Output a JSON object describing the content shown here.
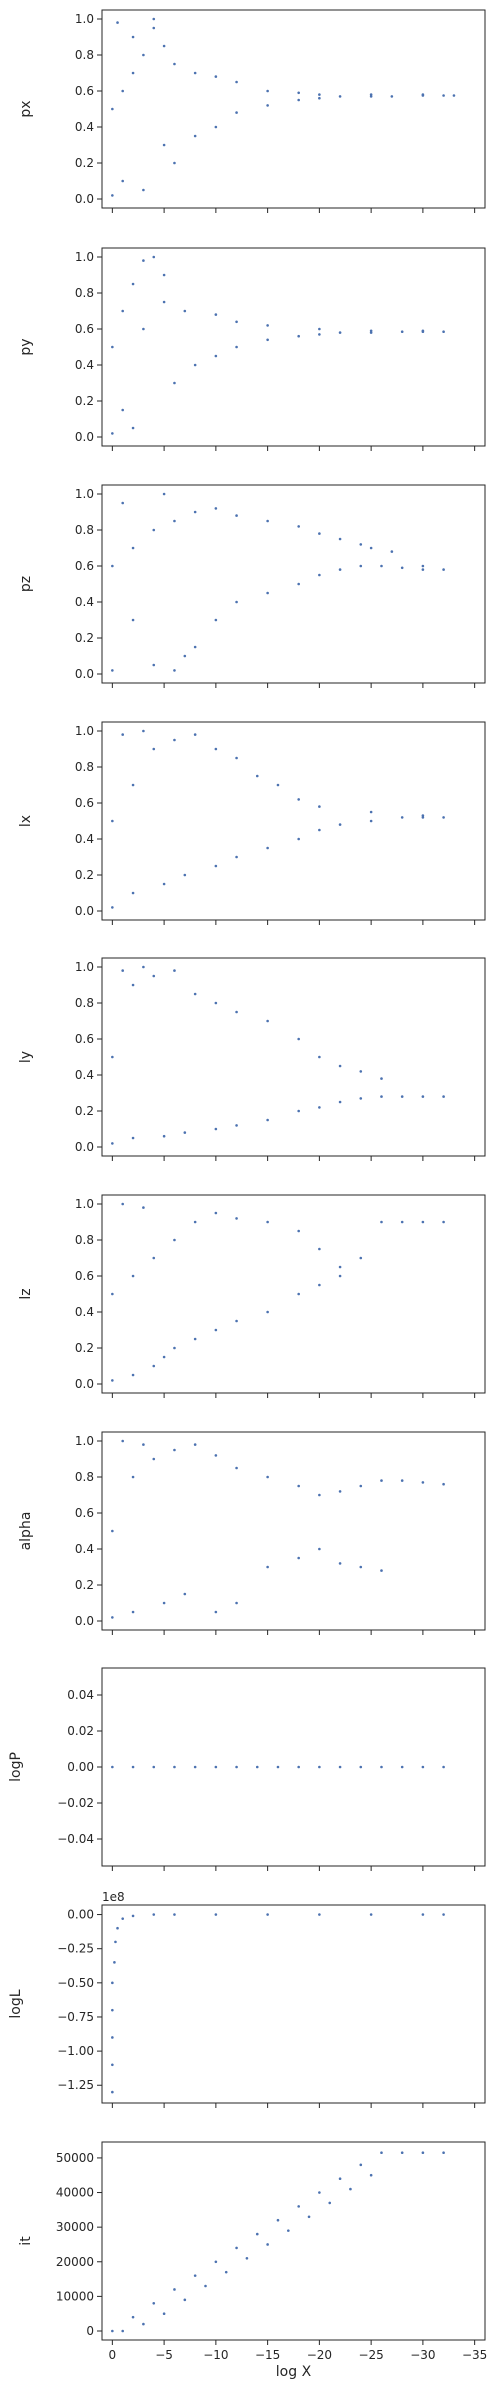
{
  "chart_data": {
    "type": "scatter",
    "xlabel": "log X",
    "xlim": [
      1,
      -36
    ],
    "x_ticks": [
      0,
      -5,
      -10,
      -15,
      -20,
      -25,
      -30,
      -35
    ],
    "x_tick_labels": [
      "0",
      "−5",
      "−10",
      "−15",
      "−20",
      "−25",
      "−30",
      "−35"
    ],
    "marker_color": "#4c72b0",
    "grid": false,
    "legend": "none",
    "panels": [
      {
        "ylabel": "px",
        "ylim": [
          -0.05,
          1.05
        ],
        "y_ticks": [
          0.0,
          0.2,
          0.4,
          0.6,
          0.8,
          1.0
        ],
        "y_tick_labels": [
          "0.0",
          "0.2",
          "0.4",
          "0.6",
          "0.8",
          "1.0"
        ],
        "data": {
          "x": [
            0,
            -0.5,
            -1,
            -2,
            -3,
            -4,
            -5,
            -6,
            -8,
            -10,
            -12,
            -15,
            -18,
            -20,
            -22,
            -25,
            -27,
            -30,
            -32,
            -33,
            0,
            -1,
            -2,
            -3,
            -4,
            -5,
            -6,
            -8,
            -10,
            -12,
            -15,
            -18,
            -20,
            -25,
            -30
          ],
          "y": [
            0.02,
            0.98,
            0.1,
            0.9,
            0.05,
            1.0,
            0.3,
            0.2,
            0.35,
            0.4,
            0.48,
            0.52,
            0.55,
            0.56,
            0.57,
            0.57,
            0.57,
            0.575,
            0.575,
            0.575,
            0.5,
            0.6,
            0.7,
            0.8,
            0.95,
            0.85,
            0.75,
            0.7,
            0.68,
            0.65,
            0.6,
            0.59,
            0.58,
            0.58,
            0.58
          ]
        }
      },
      {
        "ylabel": "py",
        "ylim": [
          -0.05,
          1.05
        ],
        "y_ticks": [
          0.0,
          0.2,
          0.4,
          0.6,
          0.8,
          1.0
        ],
        "y_tick_labels": [
          "0.0",
          "0.2",
          "0.4",
          "0.6",
          "0.8",
          "1.0"
        ],
        "data": {
          "x": [
            0,
            -1,
            -2,
            -3,
            -4,
            -5,
            -6,
            -8,
            -10,
            -12,
            -15,
            -18,
            -20,
            -22,
            -25,
            -28,
            -30,
            -32,
            0,
            -1,
            -2,
            -3,
            -5,
            -7,
            -10,
            -12,
            -15,
            -20,
            -25,
            -30
          ],
          "y": [
            0.02,
            0.15,
            0.05,
            0.98,
            1.0,
            0.9,
            0.3,
            0.4,
            0.45,
            0.5,
            0.54,
            0.56,
            0.57,
            0.58,
            0.58,
            0.585,
            0.585,
            0.585,
            0.5,
            0.7,
            0.85,
            0.6,
            0.75,
            0.7,
            0.68,
            0.64,
            0.62,
            0.6,
            0.59,
            0.59
          ]
        }
      },
      {
        "ylabel": "pz",
        "ylim": [
          -0.05,
          1.05
        ],
        "y_ticks": [
          0.0,
          0.2,
          0.4,
          0.6,
          0.8,
          1.0
        ],
        "y_tick_labels": [
          "0.0",
          "0.2",
          "0.4",
          "0.6",
          "0.8",
          "1.0"
        ],
        "data": {
          "x": [
            0,
            -1,
            -2,
            -4,
            -5,
            -6,
            -7,
            -8,
            -10,
            -12,
            -15,
            -18,
            -20,
            -22,
            -24,
            -26,
            -28,
            -30,
            -32,
            0,
            -2,
            -4,
            -6,
            -8,
            -10,
            -12,
            -15,
            -18,
            -20,
            -22,
            -24,
            -25,
            -27,
            -30
          ],
          "y": [
            0.02,
            0.95,
            0.3,
            0.05,
            1.0,
            0.02,
            0.1,
            0.15,
            0.3,
            0.4,
            0.45,
            0.5,
            0.55,
            0.58,
            0.6,
            0.6,
            0.59,
            0.58,
            0.58,
            0.6,
            0.7,
            0.8,
            0.85,
            0.9,
            0.92,
            0.88,
            0.85,
            0.82,
            0.78,
            0.75,
            0.72,
            0.7,
            0.68,
            0.6
          ]
        }
      },
      {
        "ylabel": "lx",
        "ylim": [
          -0.05,
          1.05
        ],
        "y_ticks": [
          0.0,
          0.2,
          0.4,
          0.6,
          0.8,
          1.0
        ],
        "y_tick_labels": [
          "0.0",
          "0.2",
          "0.4",
          "0.6",
          "0.8",
          "1.0"
        ],
        "data": {
          "x": [
            0,
            -1,
            -2,
            -3,
            -5,
            -7,
            -10,
            -12,
            -15,
            -18,
            -20,
            -22,
            -25,
            -28,
            -30,
            -32,
            0,
            -2,
            -4,
            -6,
            -8,
            -10,
            -12,
            -14,
            -16,
            -18,
            -20,
            -25,
            -30
          ],
          "y": [
            0.02,
            0.98,
            0.1,
            1.0,
            0.15,
            0.2,
            0.25,
            0.3,
            0.35,
            0.4,
            0.45,
            0.48,
            0.5,
            0.52,
            0.52,
            0.52,
            0.5,
            0.7,
            0.9,
            0.95,
            0.98,
            0.9,
            0.85,
            0.75,
            0.7,
            0.62,
            0.58,
            0.55,
            0.53
          ]
        }
      },
      {
        "ylabel": "ly",
        "ylim": [
          -0.05,
          1.05
        ],
        "y_ticks": [
          0.0,
          0.2,
          0.4,
          0.6,
          0.8,
          1.0
        ],
        "y_tick_labels": [
          "0.0",
          "0.2",
          "0.4",
          "0.6",
          "0.8",
          "1.0"
        ],
        "data": {
          "x": [
            0,
            -1,
            -2,
            -3,
            -5,
            -7,
            -10,
            -12,
            -15,
            -18,
            -20,
            -22,
            -24,
            -26,
            -28,
            -30,
            -32,
            0,
            -2,
            -4,
            -6,
            -8,
            -10,
            -12,
            -15,
            -18,
            -20,
            -22,
            -24,
            -26
          ],
          "y": [
            0.02,
            0.98,
            0.05,
            1.0,
            0.06,
            0.08,
            0.1,
            0.12,
            0.15,
            0.2,
            0.22,
            0.25,
            0.27,
            0.28,
            0.28,
            0.28,
            0.28,
            0.5,
            0.9,
            0.95,
            0.98,
            0.85,
            0.8,
            0.75,
            0.7,
            0.6,
            0.5,
            0.45,
            0.42,
            0.38
          ]
        }
      },
      {
        "ylabel": "lz",
        "ylim": [
          -0.05,
          1.05
        ],
        "y_ticks": [
          0.0,
          0.2,
          0.4,
          0.6,
          0.8,
          1.0
        ],
        "y_tick_labels": [
          "0.0",
          "0.2",
          "0.4",
          "0.6",
          "0.8",
          "1.0"
        ],
        "data": {
          "x": [
            0,
            -1,
            -2,
            -3,
            -4,
            -5,
            -6,
            -8,
            -10,
            -12,
            -15,
            -18,
            -20,
            -22,
            -24,
            -26,
            -28,
            -30,
            -32,
            0,
            -2,
            -4,
            -6,
            -8,
            -10,
            -12,
            -15,
            -18,
            -20,
            -22
          ],
          "y": [
            0.02,
            1.0,
            0.05,
            0.98,
            0.1,
            0.15,
            0.2,
            0.25,
            0.3,
            0.35,
            0.4,
            0.5,
            0.55,
            0.6,
            0.7,
            0.9,
            0.9,
            0.9,
            0.9,
            0.5,
            0.6,
            0.7,
            0.8,
            0.9,
            0.95,
            0.92,
            0.9,
            0.85,
            0.75,
            0.65
          ]
        }
      },
      {
        "ylabel": "alpha",
        "ylim": [
          -0.05,
          1.05
        ],
        "y_ticks": [
          0.0,
          0.2,
          0.4,
          0.6,
          0.8,
          1.0
        ],
        "y_tick_labels": [
          "0.0",
          "0.2",
          "0.4",
          "0.6",
          "0.8",
          "1.0"
        ],
        "data": {
          "x": [
            0,
            -1,
            -2,
            -3,
            -5,
            -7,
            -10,
            -12,
            -15,
            -18,
            -20,
            -22,
            -24,
            -26,
            -28,
            -30,
            -32,
            0,
            -2,
            -4,
            -6,
            -8,
            -10,
            -12,
            -15,
            -18,
            -20,
            -22,
            -24,
            -26
          ],
          "y": [
            0.02,
            1.0,
            0.05,
            0.98,
            0.1,
            0.15,
            0.05,
            0.1,
            0.3,
            0.35,
            0.4,
            0.32,
            0.3,
            0.78,
            0.78,
            0.77,
            0.76,
            0.5,
            0.8,
            0.9,
            0.95,
            0.98,
            0.92,
            0.85,
            0.8,
            0.75,
            0.7,
            0.72,
            0.75,
            0.28
          ]
        }
      },
      {
        "ylabel": "logP",
        "ylim": [
          -0.055,
          0.055
        ],
        "y_ticks": [
          -0.04,
          -0.02,
          0.0,
          0.02,
          0.04
        ],
        "y_tick_labels": [
          "−0.04",
          "−0.02",
          "0.00",
          "0.02",
          "0.04"
        ],
        "data": {
          "x": [
            0,
            -2,
            -4,
            -6,
            -8,
            -10,
            -12,
            -14,
            -16,
            -18,
            -20,
            -22,
            -24,
            -26,
            -28,
            -30,
            -32
          ],
          "y": [
            0,
            0,
            0,
            0,
            0,
            0,
            0,
            0,
            0,
            0,
            0,
            0,
            0,
            0,
            0,
            0,
            0
          ]
        }
      },
      {
        "ylabel": "logL",
        "ylim": [
          -1.38,
          0.07
        ],
        "y_ticks": [
          -1.25,
          -1.0,
          -0.75,
          -0.5,
          -0.25,
          0.0
        ],
        "y_tick_labels": [
          "−1.25",
          "−1.00",
          "−0.75",
          "−0.50",
          "−0.25",
          "0.00"
        ],
        "y_offset_text": "1e8",
        "data": {
          "x": [
            0,
            0,
            0,
            0,
            0,
            -0.2,
            -0.3,
            -0.5,
            -1,
            -2,
            -4,
            -6,
            -10,
            -15,
            -20,
            -25,
            -30,
            -32
          ],
          "y": [
            -1.3,
            -1.1,
            -0.9,
            -0.7,
            -0.5,
            -0.35,
            -0.2,
            -0.1,
            -0.03,
            -0.01,
            0,
            0,
            0,
            0,
            0,
            0,
            0,
            0
          ]
        }
      },
      {
        "ylabel": "it",
        "ylim": [
          -2600,
          54600
        ],
        "y_ticks": [
          0,
          10000,
          20000,
          30000,
          40000,
          50000
        ],
        "y_tick_labels": [
          "0",
          "10000",
          "20000",
          "30000",
          "40000",
          "50000"
        ],
        "data": {
          "x": [
            0,
            -2,
            -4,
            -6,
            -8,
            -10,
            -12,
            -14,
            -16,
            -18,
            -20,
            -22,
            -24,
            -26,
            -28,
            -30,
            -32,
            -1,
            -3,
            -5,
            -7,
            -9,
            -11,
            -13,
            -15,
            -17,
            -19,
            -21,
            -23,
            -25
          ],
          "y": [
            0,
            4000,
            8000,
            12000,
            16000,
            20000,
            24000,
            28000,
            32000,
            36000,
            40000,
            44000,
            48000,
            51500,
            51500,
            51500,
            51500,
            0,
            2000,
            5000,
            9000,
            13000,
            17000,
            21000,
            25000,
            29000,
            33000,
            37000,
            41000,
            45000
          ]
        }
      }
    ]
  }
}
